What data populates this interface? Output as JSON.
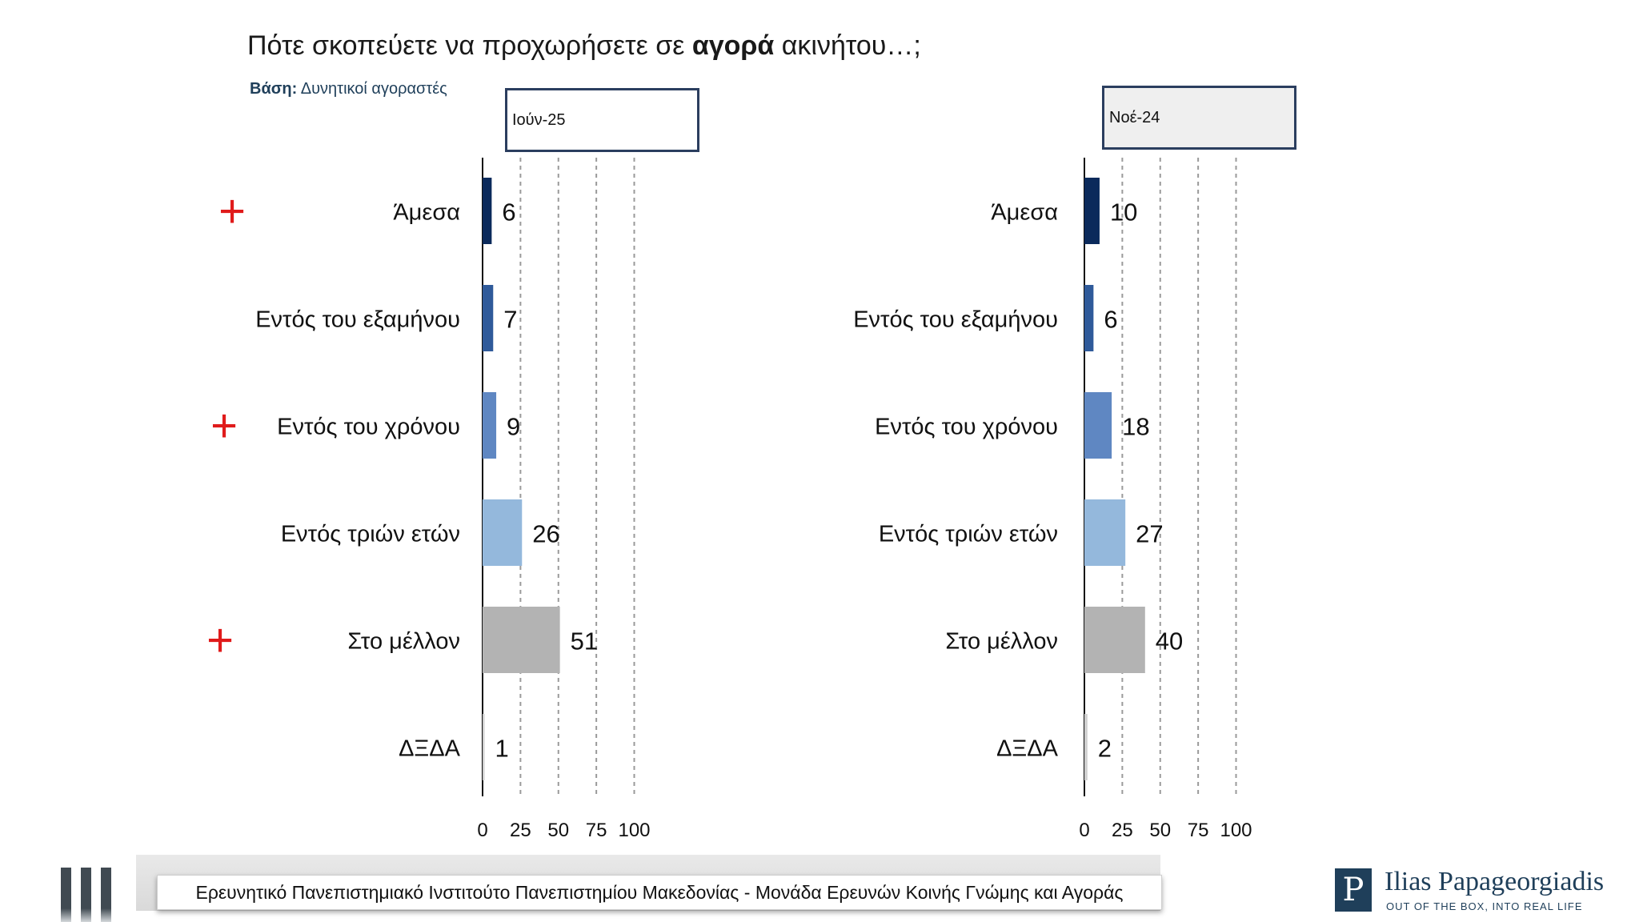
{
  "title": {
    "prefix": "Πότε σκοπεύετε να προχωρήσετε σε ",
    "emphasis": "αγορά",
    "suffix": " ακινήτου…;"
  },
  "base": {
    "label": "Βάση:",
    "text": " Δυνητικοί αγοραστές"
  },
  "chart_data": [
    {
      "type": "bar",
      "orientation": "horizontal",
      "period_label": "Ιούν-25",
      "categories": [
        "Άμεσα",
        "Εντός του εξαμήνου",
        "Εντός του χρόνου",
        "Εντός τριών ετών",
        "Στο μέλλον",
        "ΔΞΔΑ"
      ],
      "values": [
        6,
        7,
        9,
        26,
        51,
        1
      ],
      "xlim": [
        0,
        100
      ],
      "x_ticks": [
        "0",
        "25",
        "50",
        "75",
        "100"
      ],
      "grid": "dashed vertical",
      "bar_colors": [
        "#0b2a5b",
        "#2f5a9a",
        "#5f87c2",
        "#94b8dc",
        "#b3b3b3",
        "#cfcfcf"
      ],
      "markers": [
        "+",
        "",
        "+",
        "",
        "+",
        ""
      ],
      "marker_color": "#e01b1b"
    },
    {
      "type": "bar",
      "orientation": "horizontal",
      "period_label": "Νοέ-24",
      "categories": [
        "Άμεσα",
        "Εντός του εξαμήνου",
        "Εντός του χρόνου",
        "Εντός τριών ετών",
        "Στο μέλλον",
        "ΔΞΔΑ"
      ],
      "values": [
        10,
        6,
        18,
        27,
        40,
        2
      ],
      "xlim": [
        0,
        100
      ],
      "x_ticks": [
        "0",
        "25",
        "50",
        "75",
        "100"
      ],
      "grid": "dashed vertical",
      "bar_colors": [
        "#0b2a5b",
        "#2f5a9a",
        "#5f87c2",
        "#94b8dc",
        "#b3b3b3",
        "#cfcfcf"
      ]
    }
  ],
  "footer": {
    "text": "Ερευνητικό Πανεπιστημιακό Ινστιτούτο Πανεπιστημίου Μακεδονίας - Μονάδα Ερευνών Κοινής Γνώμης και Αγοράς"
  },
  "brand": {
    "mark": "P",
    "name": "Ilias Papageorgiadis",
    "tagline": "OUT OF THE BOX, INTO REAL LIFE"
  }
}
